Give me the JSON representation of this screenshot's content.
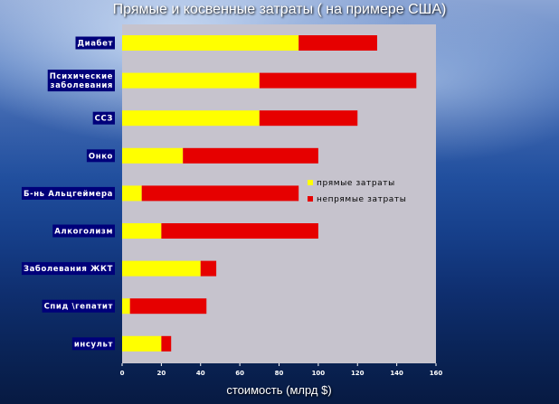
{
  "chart_data": {
    "type": "bar",
    "orientation": "horizontal",
    "stacked": true,
    "title": "Прямые и косвенные затраты ( на примере США)",
    "xlabel": "стоимость (млрд $)",
    "ylabel": "",
    "xlim": [
      0,
      160
    ],
    "xticks": [
      0,
      20,
      40,
      60,
      80,
      100,
      120,
      140,
      160
    ],
    "grid": false,
    "legend_position": "right",
    "categories": [
      [
        "Диабет"
      ],
      [
        "Психические",
        "заболевания"
      ],
      [
        "ССЗ"
      ],
      [
        "Онко"
      ],
      [
        "Б-нь Альцгеймера"
      ],
      [
        "Алкоголизм"
      ],
      [
        "Заболевания ЖКТ"
      ],
      [
        "Спид \\гепатит"
      ],
      [
        "инсульт"
      ]
    ],
    "series": [
      {
        "name": "прямые затраты",
        "color": "#ffff00",
        "values": [
          90,
          70,
          70,
          31,
          10,
          20,
          40,
          4,
          20
        ]
      },
      {
        "name": "непрямые затраты",
        "color": "#e60000",
        "values": [
          40,
          80,
          50,
          69,
          80,
          80,
          8,
          39,
          5
        ]
      }
    ],
    "colors": {
      "plot_area": "#c6c3cd",
      "label_bg": "#00007a",
      "label_text": "#ffffff"
    }
  }
}
